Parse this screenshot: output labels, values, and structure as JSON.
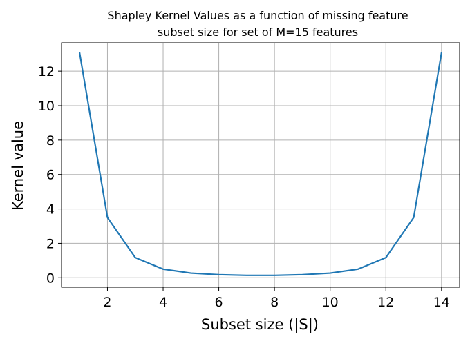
{
  "chart_data": {
    "type": "line",
    "title_lines": [
      "Shapley Kernel Values as a function of missing feature",
      "subset size for set of M=15 features"
    ],
    "xlabel": "Subset size (|S|)",
    "ylabel": "Kernel value",
    "xlim": [
      0.35,
      14.65
    ],
    "ylim": [
      -0.55,
      13.65
    ],
    "xticks": [
      2,
      4,
      6,
      8,
      10,
      12,
      14
    ],
    "yticks": [
      0,
      2,
      4,
      6,
      8,
      10,
      12
    ],
    "grid": true,
    "series": [
      {
        "color": "#1f77b4",
        "x": [
          1,
          2,
          3,
          4,
          5,
          6,
          7,
          8,
          9,
          10,
          11,
          12,
          13,
          14
        ],
        "y": [
          13.07,
          3.5,
          1.17,
          0.5,
          0.27,
          0.18,
          0.14,
          0.14,
          0.18,
          0.27,
          0.5,
          1.17,
          3.5,
          13.07
        ]
      }
    ]
  }
}
